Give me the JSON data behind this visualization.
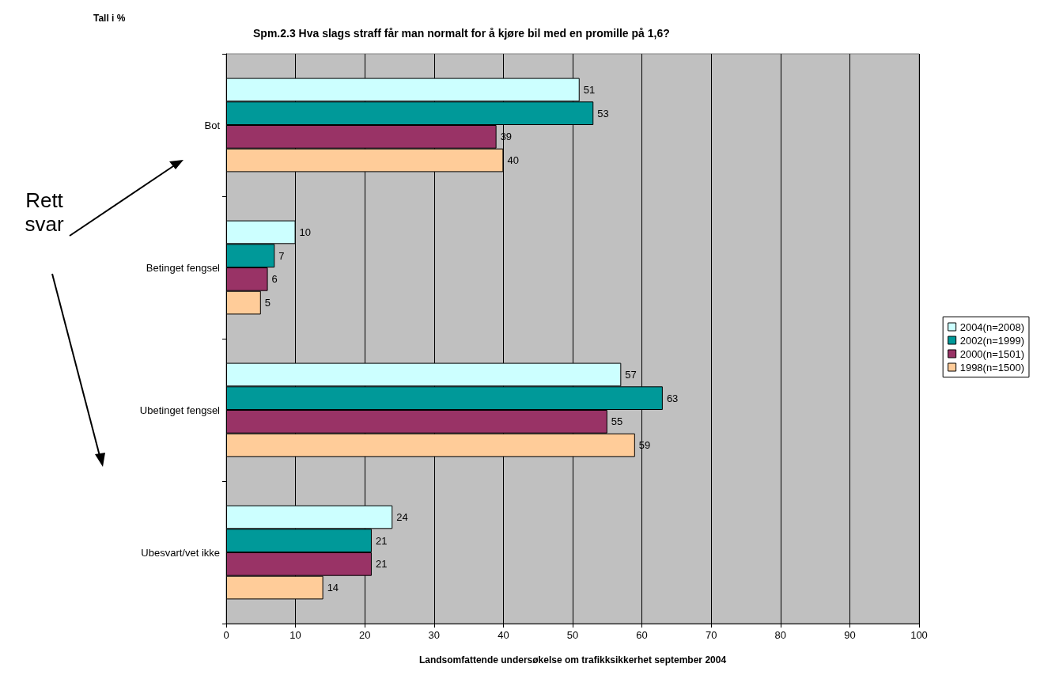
{
  "chart_data": {
    "type": "bar",
    "orientation": "horizontal",
    "title": "Spm.2.3 Hva slags straff får man normalt for å kjøre bil med en promille på 1,6?",
    "xlabel": "Landsomfattende undersøkelse om trafikksikkerhet september 2004",
    "annotations": [
      "Tall i %",
      "Rett svar"
    ],
    "categories": [
      "Bot",
      "Betinget fengsel",
      "Ubetinget fengsel",
      "Ubesvart/vet ikke"
    ],
    "series": [
      {
        "name": "2004(n=2008)",
        "color": "#ccffff",
        "values": [
          51,
          10,
          57,
          24
        ]
      },
      {
        "name": "2002(n=1999)",
        "color": "#009999",
        "values": [
          53,
          7,
          63,
          21
        ]
      },
      {
        "name": "2000(n=1501)",
        "color": "#993366",
        "values": [
          39,
          6,
          55,
          21
        ]
      },
      {
        "name": "1998(n=1500)",
        "color": "#ffcc99",
        "values": [
          40,
          5,
          59,
          14
        ]
      }
    ],
    "xlim": [
      0,
      100
    ],
    "xticks": [
      0,
      10,
      20,
      30,
      40,
      50,
      60,
      70,
      80,
      90,
      100
    ],
    "grid": "x",
    "legend": "right",
    "data_labels": true
  }
}
